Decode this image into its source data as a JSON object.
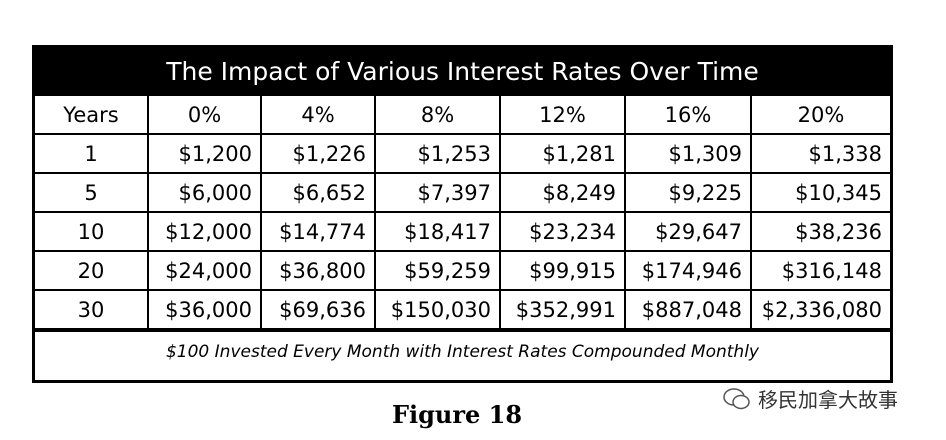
{
  "header": {
    "title": "The Impact of Various Interest Rates Over Time"
  },
  "table": {
    "columns": [
      "Years",
      "0%",
      "4%",
      "8%",
      "12%",
      "16%",
      "20%"
    ],
    "rows": [
      [
        "1",
        "$1,200",
        "$1,226",
        "$1,253",
        "$1,281",
        "$1,309",
        "$1,338"
      ],
      [
        "5",
        "$6,000",
        "$6,652",
        "$7,397",
        "$8,249",
        "$9,225",
        "$10,345"
      ],
      [
        "10",
        "$12,000",
        "$14,774",
        "$18,417",
        "$23,234",
        "$29,647",
        "$38,236"
      ],
      [
        "20",
        "$24,000",
        "$36,800",
        "$59,259",
        "$99,915",
        "$174,946",
        "$316,148"
      ],
      [
        "30",
        "$36,000",
        "$69,636",
        "$150,030",
        "$352,991",
        "$887,048",
        "$2,336,080"
      ]
    ],
    "footnote": "$100 Invested Every Month with Interest Rates Compounded Monthly"
  },
  "caption": "Figure 18",
  "watermark": "移民加拿大故事"
}
